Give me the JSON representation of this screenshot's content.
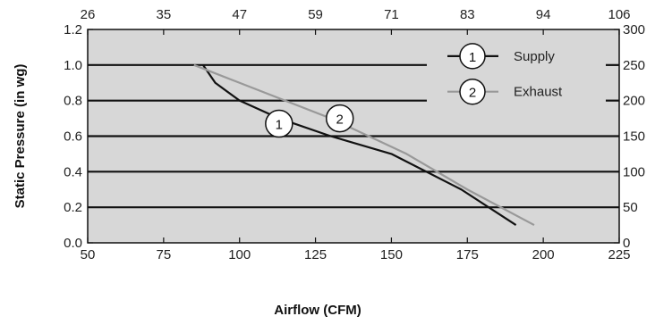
{
  "chart_data": {
    "type": "line",
    "ylabel": "Static Pressure (in wg)",
    "xlabel": "Airflow (CFM)",
    "xlim": [
      50,
      225
    ],
    "ylim": [
      0,
      1.2
    ],
    "y2lim": [
      0,
      300
    ],
    "x_ticks": [
      "50",
      "75",
      "100",
      "125",
      "150",
      "175",
      "200",
      "225"
    ],
    "y_ticks": [
      "0.0",
      "0.2",
      "0.4",
      "0.6",
      "0.8",
      "1.0",
      "1.2"
    ],
    "y2_ticks": [
      "0",
      "50",
      "100",
      "150",
      "200",
      "250",
      "300"
    ],
    "x2_ticks": [
      "26",
      "35",
      "47",
      "59",
      "71",
      "83",
      "94",
      "106"
    ],
    "grid": "horizontal",
    "legend_position": "top-right",
    "series": [
      {
        "name": "Supply",
        "marker": "1",
        "color": "#111111",
        "x": [
          88,
          92,
          100,
          113,
          130,
          150,
          173,
          191
        ],
        "y": [
          1.0,
          0.9,
          0.8,
          0.7,
          0.6,
          0.5,
          0.3,
          0.1
        ]
      },
      {
        "name": "Exhaust",
        "marker": "2",
        "color": "#999999",
        "x": [
          85,
          100,
          130,
          155,
          175,
          197
        ],
        "y": [
          1.0,
          0.9,
          0.7,
          0.5,
          0.3,
          0.1
        ]
      }
    ],
    "annotations": [
      {
        "text": "1",
        "series": 0
      },
      {
        "text": "2",
        "series": 1
      }
    ]
  }
}
